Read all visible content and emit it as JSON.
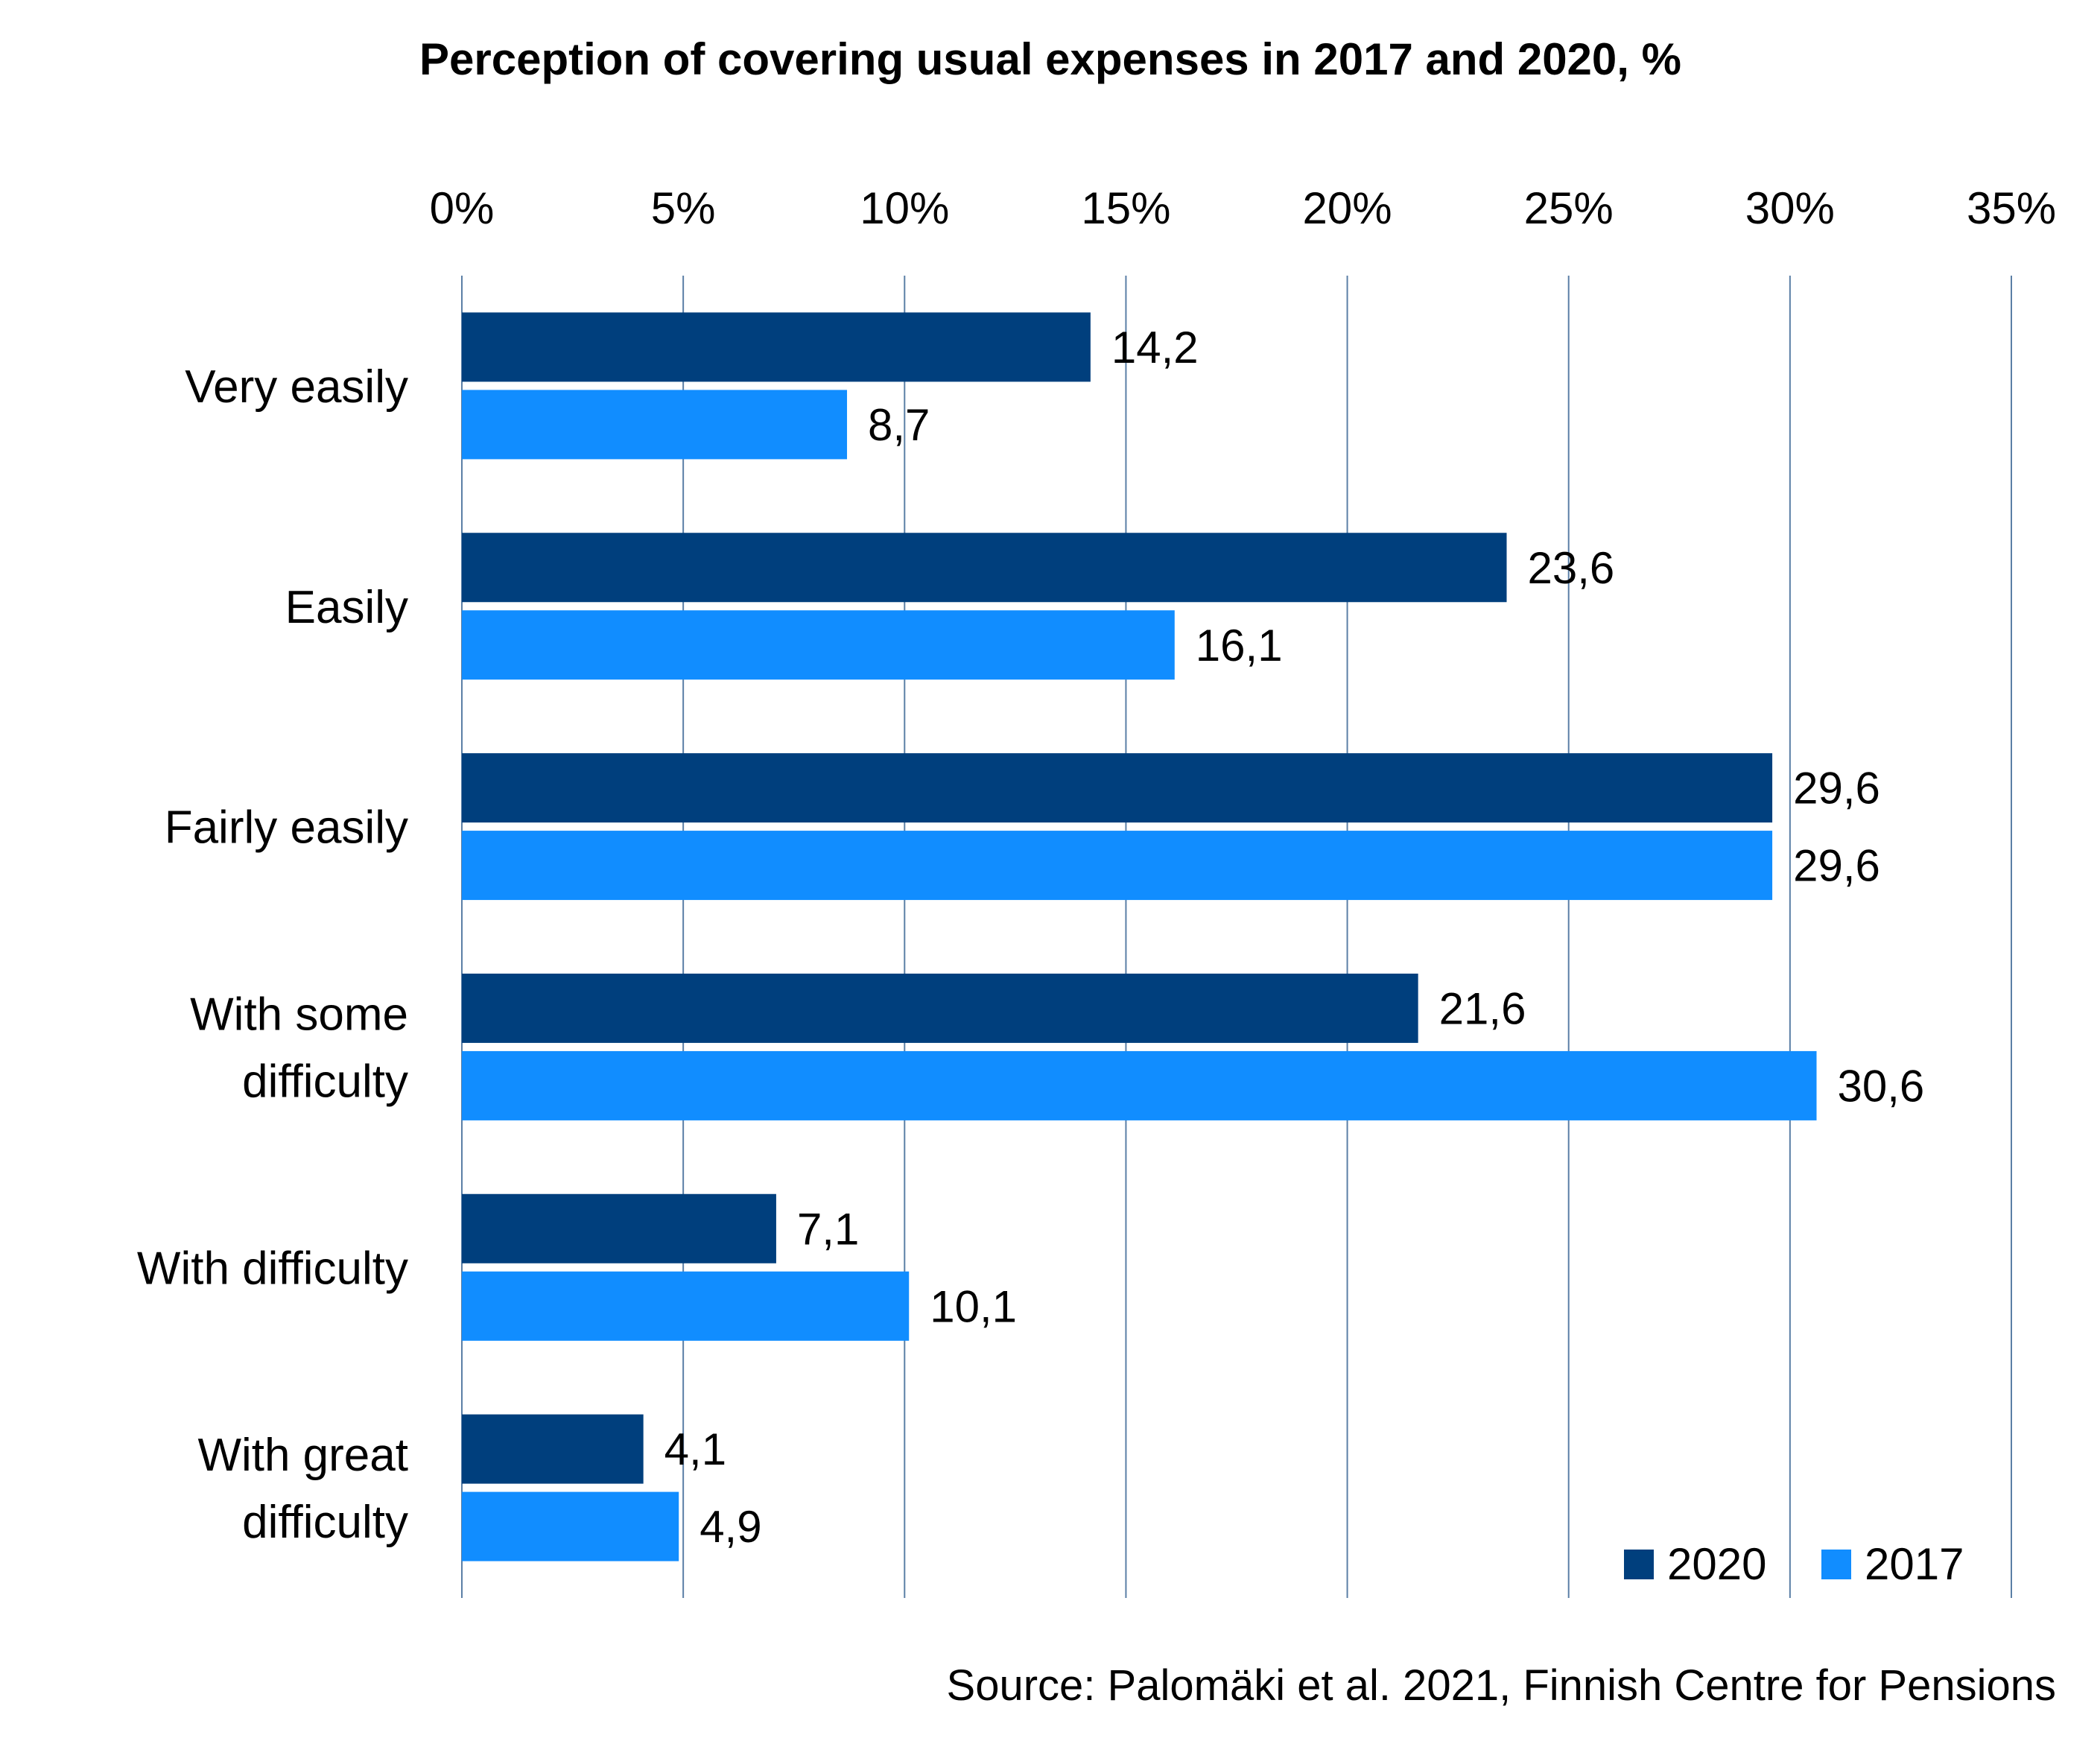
{
  "chart_data": {
    "type": "bar",
    "orientation": "horizontal",
    "title": "Perception of covering usual expenses in 2017 and 2020, %",
    "categories": [
      [
        "Very easily"
      ],
      [
        "Easily"
      ],
      [
        "Fairly easily"
      ],
      [
        "With some",
        "difficulty"
      ],
      [
        "With difficulty"
      ],
      [
        "With great",
        "difficulty"
      ]
    ],
    "series": [
      {
        "name": "2020",
        "color": "#003F7D",
        "values": [
          14.2,
          23.6,
          29.6,
          21.6,
          7.1,
          4.1
        ],
        "labels": [
          "14,2",
          "23,6",
          "29,6",
          "21,6",
          "7,1",
          "4,1"
        ]
      },
      {
        "name": "2017",
        "color": "#118DFF",
        "values": [
          8.7,
          16.1,
          29.6,
          30.6,
          10.1,
          4.9
        ],
        "labels": [
          "8,7",
          "16,1",
          "29,6",
          "30,6",
          "10,1",
          "4,9"
        ]
      }
    ],
    "xlim": [
      0,
      35
    ],
    "xticks": [
      "0%",
      "5%",
      "10%",
      "15%",
      "20%",
      "25%",
      "30%",
      "35%"
    ],
    "x_axis_position": "top",
    "grid": true,
    "gridline_color": "#5B7FA6",
    "legend_position": "bottom-right",
    "source": "Source: Palomäki et al. 2021, Finnish Centre for Pensions"
  }
}
